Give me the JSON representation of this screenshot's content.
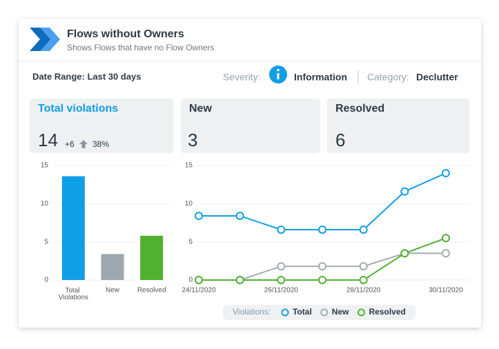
{
  "header": {
    "title": "Flows without Owners",
    "subtitle": "Shows Flows that have no Flow Owners"
  },
  "filters": {
    "date_range": "Date Range: Last 30 days",
    "severity_label": "Severity:",
    "severity": "Information",
    "category_label": "Category:",
    "category": "Declutter"
  },
  "kpis": [
    {
      "title": "Total violations",
      "value": 14,
      "change": "+6",
      "change_percent": "38%"
    },
    {
      "title": "New",
      "value": 3
    },
    {
      "title": "Resolved",
      "value": 6
    }
  ],
  "chart_data": [
    {
      "type": "bar",
      "categories": [
        "Total Violations",
        "New",
        "Resolved"
      ],
      "values": [
        13.6,
        3.4,
        5.8
      ],
      "colors": [
        "#109ee6",
        "#9ea7ae",
        "#4fb12f"
      ],
      "ylim": [
        0,
        15
      ],
      "yticks": [
        0,
        5,
        10,
        15
      ],
      "grid": true
    },
    {
      "type": "line",
      "categories": [
        "24/11/2020",
        null,
        "26/11/2020",
        null,
        "28/11/2020",
        null,
        "30/11/2020"
      ],
      "series": [
        {
          "name": "Total",
          "color": "#109ee6",
          "values": [
            8.4,
            8.4,
            6.6,
            6.6,
            6.6,
            11.6,
            14
          ]
        },
        {
          "name": "New",
          "color": "#a3abb2",
          "values": [
            0,
            0,
            1.8,
            1.8,
            1.8,
            3.5,
            3.5
          ]
        },
        {
          "name": "Resolved",
          "color": "#4fb12f",
          "values": [
            0,
            0,
            0,
            0,
            0,
            3.5,
            5.5
          ]
        }
      ],
      "ylim": [
        0,
        15
      ],
      "yticks": [
        0,
        5,
        10,
        15
      ],
      "grid": true,
      "legend_title": "Violations:",
      "legend": "bottom"
    }
  ]
}
